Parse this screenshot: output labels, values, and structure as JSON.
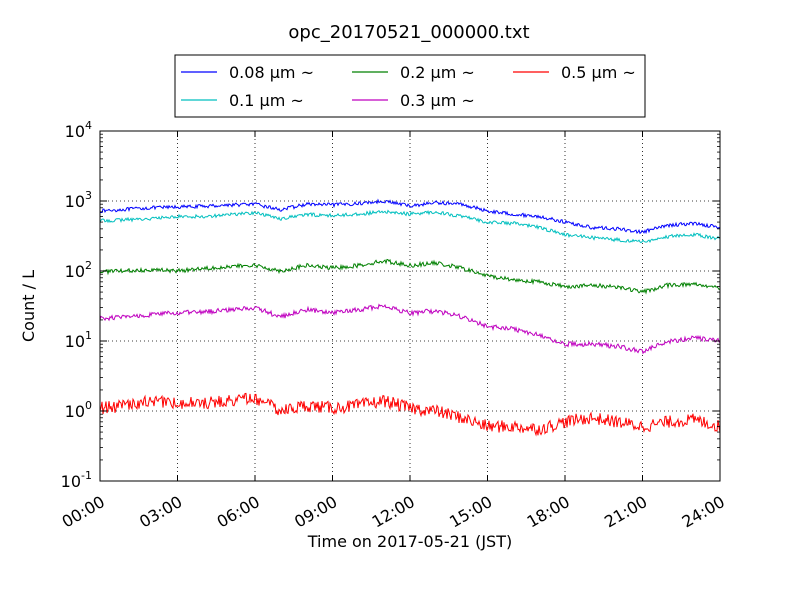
{
  "chart_data": {
    "type": "line",
    "title": "opc_20170521_000000.txt",
    "xlabel": "Time on 2017-05-21 (JST)",
    "ylabel": "Count / L",
    "x_unit": "hours",
    "xlim": [
      0,
      24
    ],
    "ylim": [
      0.1,
      10000
    ],
    "yscale": "log",
    "grid": true,
    "legend_position": "top",
    "x_tick_labels": [
      "00:00",
      "03:00",
      "06:00",
      "09:00",
      "12:00",
      "15:00",
      "18:00",
      "21:00",
      "24:00"
    ],
    "y_tick_labels": [
      {
        "base": "10",
        "exp": "-1"
      },
      {
        "base": "10",
        "exp": "0"
      },
      {
        "base": "10",
        "exp": "1"
      },
      {
        "base": "10",
        "exp": "2"
      },
      {
        "base": "10",
        "exp": "3"
      },
      {
        "base": "10",
        "exp": "4"
      }
    ],
    "x": [
      0,
      1,
      2,
      3,
      4,
      5,
      6,
      7,
      8,
      9,
      10,
      11,
      12,
      13,
      14,
      15,
      16,
      17,
      18,
      19,
      20,
      21,
      22,
      23,
      24
    ],
    "series": [
      {
        "name": "0.08 μm ~",
        "color": "#0000ff",
        "values": [
          720,
          760,
          800,
          820,
          840,
          880,
          900,
          750,
          900,
          880,
          920,
          1000,
          850,
          950,
          900,
          720,
          650,
          600,
          500,
          420,
          400,
          360,
          450,
          480,
          420
        ]
      },
      {
        "name": "0.1 μm ~",
        "color": "#00bfbf",
        "values": [
          520,
          540,
          560,
          600,
          600,
          640,
          680,
          560,
          640,
          620,
          650,
          700,
          650,
          700,
          600,
          500,
          480,
          420,
          330,
          300,
          280,
          260,
          310,
          330,
          290
        ]
      },
      {
        "name": "0.2 μm ~",
        "color": "#008000",
        "values": [
          98,
          100,
          105,
          100,
          110,
          115,
          120,
          100,
          120,
          110,
          120,
          140,
          120,
          130,
          110,
          85,
          75,
          70,
          60,
          62,
          60,
          50,
          63,
          65,
          58
        ]
      },
      {
        "name": "0.3 μm ~",
        "color": "#bf00bf",
        "values": [
          21,
          22,
          24,
          25,
          26,
          28,
          30,
          22,
          28,
          25,
          28,
          32,
          25,
          27,
          22,
          16,
          15,
          12,
          9,
          9,
          8.5,
          7,
          10,
          11,
          10
        ]
      },
      {
        "name": "0.5 μm ~",
        "color": "#ff0000",
        "values": [
          1.1,
          1.2,
          1.4,
          1.3,
          1.3,
          1.4,
          1.5,
          1.0,
          1.2,
          1.1,
          1.2,
          1.4,
          1.1,
          1.0,
          0.8,
          0.6,
          0.6,
          0.55,
          0.7,
          0.8,
          0.7,
          0.6,
          0.7,
          0.75,
          0.6
        ]
      }
    ]
  }
}
